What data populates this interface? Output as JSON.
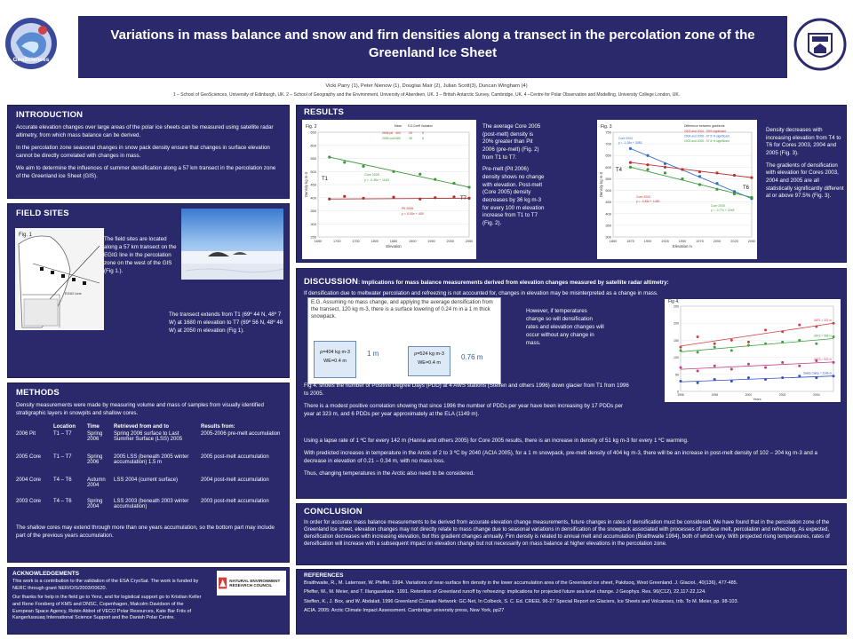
{
  "header": {
    "title": "Variations in mass balance and snow and firn densities along a transect in the percolation zone of the Greenland Ice Sheet",
    "authors": "Vicki Parry (1), Peter Nienow (1), Douglas Mair (2), Julian Scott(3), Duncan Wingham (4)",
    "affiliations": "1 – School of GeoSciences, University of Edinburgh, UK. 2 – School of Geography and the Environment, University of Aberdeen, UK. 3 – British Antarctic Survey, Cambridge, UK. 4 –Centre for Polar Observation and Modelling, University College London, UK.",
    "left_logo_text": "GeoSciences",
    "right_logo_text": "THE UNIVERSITY of EDINBURGH"
  },
  "intro": {
    "title": "INTRODUCTION",
    "p1": "Accurate elevation changes over large areas of the polar ice sheets can be measured using satellite radar altimetry, from which mass balance can be derived.",
    "p2": "In the percolation zone seasonal changes in snow pack density ensure that changes in surface elevation cannot be directly correlated with changes in mass.",
    "p3": "We aim to determine the influences of summer densification along a 57 km transect in the percolation zone of the Greenland ice Sheet (GIS)."
  },
  "field": {
    "title": "FIELD SITES",
    "fig_label": "Fig. 1",
    "map_label": "EGIG Line",
    "text1": "The field sites are located along a 57 km transect on the EGIG line in the percolation zone on the west of the GIS (Fig 1.).",
    "text2": "The transect extends from T1 (69º 44 N, 48º 7 W) at 1680 m elevation to T7 (69º 56 N, 48º 48 W) at 2050 m elevation (Fig 1)."
  },
  "methods": {
    "title": "METHODS",
    "intro": "Density measurements were made by measuring volume and mass of samples from visually identified stratigraphic layers in snowpits and shallow cores.",
    "headers": [
      "",
      "Location",
      "Time",
      "Retrieved from and to",
      "Results from:"
    ],
    "rows": [
      [
        "2006 Pit",
        "T1 – T7",
        "Spring 2006",
        "Spring 2006 surface to Last Summer Surface (LSS) 2005",
        "2005-2006 pre-melt accumulation"
      ],
      [
        "2005 Core",
        "T1 – T7",
        "Spring 2006",
        "2005 LSS (beneath 2005 winter accumulation) 1.5 m",
        "2005 post-melt accumulation"
      ],
      [
        "2004 Core",
        "T4 – T6",
        "Autumn 2004",
        "LSS 2004 (current surface)",
        "2004 post-melt accumulation"
      ],
      [
        "2003 Core",
        "T4 – T6",
        "Spring 2004",
        "LSS 2003 (beneath 2003 winter accumulation)",
        "2003 post-melt accumulation"
      ]
    ],
    "outro": "The shallow cores may extend through more than one years accumulation, so the bottom part may include part of the previous years accumulation."
  },
  "ack": {
    "title": "ACKNOWLEDGEMENTS",
    "p1": "This work is a contribution to the validation of the ESA CryoSat. The work is funded by NERC through grant NER/O/S/2003/00620.",
    "p2": "Our thanks for help in the field go to Yenz, and for logistical support go to Kristian Keller and Rene Forsberg of KMS and DNSC, Copenhagen, Malcolm Davidson of the European Space Agency, Robin Abbot of VECO Polar Resources, Kate Bar Friis of Kangerlussuaq International Science Support and the Danish Polar Centre.",
    "nerc_label": "NATURAL ENVIRONMENT RESEARCH COUNCIL"
  },
  "results": {
    "title": "RESULTS",
    "fig2_label": "Fig. 2",
    "fig3_label": "Fig. 3",
    "text_mid_1": "The average Core 2005 (post-melt) density is 20% greater than Pit 2006 (pre-melt) (Fig. 2) from T1 to T7.",
    "text_mid_2": "Pre-melt (Pit 2006) density shows no change with elevation. Post-melt (Core 2005) density decreases by 36 kg m-3 for every 100 m elevation increase from T1 to T7 (Fig. 2).",
    "text_right_1": "Density decreases with increasing elevation from T4 to T6 for Cores 2003, 2004 and 2005 (Fig. 3).",
    "text_right_2": "The gradients of densification with elevation for Cores 2003, 2004 and 2005 are all statistically significantly different at or above 97.5% (Fig. 3)."
  },
  "discussion": {
    "title": "DISCUSSION",
    "subtitle": ": Implications for mass balance measurements derived from elevation changes measured by satellite radar altimetry:",
    "lead": "If densification due to meltwater percolation and refreezing is not accounted for, changes in elevation may be misinterpreted as a change in mass.",
    "example": "E.G. Assuming no mass change, and applying the average densification from the transect, 120 kg m-3, there is a surface lowering of 0.24 m in a 1 m thick snowpack.",
    "box1_a": "ρ=404 kg m-3",
    "box1_b": "WE=0.4 m",
    "box1_h": "1 m",
    "box2_a": "ρ=524 kg m-3",
    "box2_b": "WE=0.4 m",
    "box2_h": "0.76 m",
    "side_text": "However, if temperatures change so will densification rates and elevation changes will occur without any change in mass.",
    "fig4_label": "Fig 4.",
    "fig4_text": "Fig 4. shows the number of Positive Degree Days (PDD) at 4 AWS stations (Steffen and others 1996) down glacier from T1 from 1996 to 2005.",
    "p_corr": "There is a modest positive correlation showing that since 1996 the number of PDDs per year have been increasing by 17 PDDs per year at 323 m, and 6 PDDs per year approximately at the ELA (1149 m).",
    "p_lapse": "Using a lapse rate of 1 ºC for every 142 m (Hanna and others 2005) for Core 2005 results, there is an increase in density of 51 kg m-3 for every 1 ºC warming.",
    "p_pred": "With predicted increases in temperature in the Arctic of 2 to 3 ºC by 2040 (ACIA 2005), for a 1 m snowpack, pre-melt density of 404 kg m-3, there will be an increase in post-melt density of 102 – 204 kg m-3 and a decrease in elevation of 0.21 – 0.34 m, with no mass loss.",
    "p_thus": "Thus, changing temperatures in the Arctic also need to be considered."
  },
  "conclusion": {
    "title": "CONCLUSION",
    "text": "In order for accurate mass balance measurements to be derived from accurate elevation change measurements, future changes in rates of densification must be considered. We have found that in the percolation zone of the Greenland Ice sheet, elevation changes may not directly relate to mass change due to seasonal variations in densification of the snowpack associated with processes of surface melt, percolation and refreezing. As expected, densification decreases with increasing elevation, but this gradient changes annually. Firn density is related to annual melt and accumulation (Braithwaite 1994), both of which vary. With projected rising temperatures, rates of densification will increase with a subsequent impact on elevation change but not necessarily on mass balance at higher elevations in the percolation zone."
  },
  "references": {
    "title": "REFERENCES",
    "items": [
      "Braithwaite, R., M. Laternser, W. Pfeffer. 1994. Variations of near-surface firn density in the lower accumulation area of the Greenland ice sheet, Pakitsoq, West Greenland. J. Glaciol., 40(136), 477-485.",
      "Pfeffer, W., M. Meier, and T. Illangasekare. 1991. Retention of Greenland runoff by refreezing: implications for projected future sea level change. J Geophys. Res. 96(C12), 22,117-22,124.",
      "Steffen, K., J. Box, and W. Abdalati, 1996 Greenland CLimate Network: GC-Net, In Colbeck, S. C. Ed. CREEL 96-27 Special Report on Glaciers, Ice Sheets and Volcanoes, trib. To M. Meier, pp. 98-103.",
      "ACIA. 2005: Arctic Climate Impact Assessment. Cambridge university press, New York, pp27"
    ]
  },
  "chart_data": [
    {
      "type": "scatter",
      "title": "Fig. 2",
      "xlabel": "Elevation",
      "ylabel": "Density kg m-3",
      "xlim": [
        1650,
        2050
      ],
      "ylim": [
        250,
        650
      ],
      "xticks": [
        1650,
        1700,
        1750,
        1800,
        1850,
        1900,
        1950,
        2000,
        2050
      ],
      "yticks": [
        250,
        300,
        350,
        400,
        450,
        500,
        550,
        600,
        650
      ],
      "series": [
        {
          "name": "Core 2005",
          "color": "#3a9a3a",
          "fit": "y = -0.36x + 1183",
          "points": [
            [
              1680,
              555
            ],
            [
              1720,
              535
            ],
            [
              1770,
              520
            ],
            [
              1850,
              500
            ],
            [
              1920,
              490
            ],
            [
              1960,
              470
            ],
            [
              2010,
              455
            ],
            [
              2050,
              440
            ]
          ]
        },
        {
          "name": "Pit 2006",
          "color": "#b03030",
          "fit": "y = 0.00x + 400",
          "points": [
            [
              1680,
              395
            ],
            [
              1720,
              405
            ],
            [
              1770,
              398
            ],
            [
              1850,
              402
            ],
            [
              1920,
              395
            ],
            [
              1960,
              400
            ],
            [
              2010,
              403
            ],
            [
              2050,
              398
            ]
          ]
        }
      ],
      "annotations": [
        "T1",
        "T7"
      ],
      "table_headers": [
        "Mean",
        "S.D.",
        "Coeff Variation"
      ],
      "table_rows": [
        [
          "2006 pit",
          "400",
          "20",
          "5"
        ],
        [
          "2005 core",
          "480",
          "38",
          "8"
        ]
      ]
    },
    {
      "type": "scatter",
      "title": "Fig. 3",
      "xlabel": "Elevation m",
      "ylabel": "Density kg m-3",
      "xlim": [
        1850,
        2050
      ],
      "ylim": [
        300,
        750
      ],
      "xticks": [
        1850,
        1875,
        1900,
        1925,
        1950,
        1975,
        2000,
        2025,
        2050
      ],
      "yticks": [
        300,
        350,
        400,
        450,
        500,
        550,
        600,
        650,
        700,
        750
      ],
      "series": [
        {
          "name": "Core 2004",
          "color": "#2f6cc8",
          "fit": "y = -1.28x + 3083",
          "points": [
            [
              1875,
              680
            ],
            [
              1900,
              650
            ],
            [
              1925,
              615
            ],
            [
              1950,
              590
            ],
            [
              1975,
              560
            ],
            [
              2000,
              530
            ],
            [
              2025,
              495
            ],
            [
              2050,
              465
            ]
          ]
        },
        {
          "name": "Core 2003",
          "color": "#c03030",
          "fit": "y = -0.45x + 1480",
          "points": [
            [
              1875,
              620
            ],
            [
              1900,
              610
            ],
            [
              1925,
              600
            ],
            [
              1950,
              590
            ],
            [
              1975,
              580
            ],
            [
              2000,
              575
            ],
            [
              2025,
              565
            ],
            [
              2050,
              555
            ]
          ]
        },
        {
          "name": "Core 2005",
          "color": "#3a9a3a",
          "fit": "y = -0.77x + 2045",
          "points": [
            [
              1875,
              600
            ],
            [
              1900,
              590
            ],
            [
              1925,
              575
            ],
            [
              1950,
              550
            ],
            [
              1975,
              525
            ],
            [
              2000,
              505
            ],
            [
              2025,
              485
            ],
            [
              2050,
              470
            ]
          ]
        }
      ],
      "annotations": [
        "T4",
        "T6"
      ],
      "legend_title": "Difference between gradients",
      "legend_items": [
        "2003 and 2004 - 99% significant",
        "2004 and 2005 - 97.5 % significant",
        "2003 and 2005 - 97.5 % significant"
      ]
    },
    {
      "type": "line",
      "title": "Fig 4.",
      "xlabel": "Years",
      "ylabel": "PDD",
      "xlim": [
        1996,
        2005
      ],
      "ylim": [
        0,
        250
      ],
      "x": [
        1996,
        1997,
        1998,
        1999,
        2000,
        2001,
        2002,
        2003,
        2004,
        2005
      ],
      "series": [
        {
          "name": "JAR1 = 323 m",
          "color": "#d04040",
          "values": [
            130,
            160,
            140,
            150,
            145,
            180,
            175,
            195,
            190,
            200
          ]
        },
        {
          "name": "JAR2 = 568 m",
          "color": "#40a040",
          "values": [
            120,
            115,
            130,
            120,
            135,
            140,
            145,
            150,
            140,
            160
          ]
        },
        {
          "name": "JAR3 = 932 m",
          "color": "#c04080",
          "values": [
            70,
            60,
            75,
            65,
            80,
            70,
            85,
            75,
            90,
            85
          ]
        },
        {
          "name": "Swiss Camp = 1149 m",
          "color": "#3050c0",
          "values": [
            30,
            25,
            35,
            30,
            40,
            35,
            40,
            45,
            40,
            45
          ]
        }
      ]
    }
  ],
  "colors": {
    "panel": "#29296b",
    "header": "#29296b"
  }
}
